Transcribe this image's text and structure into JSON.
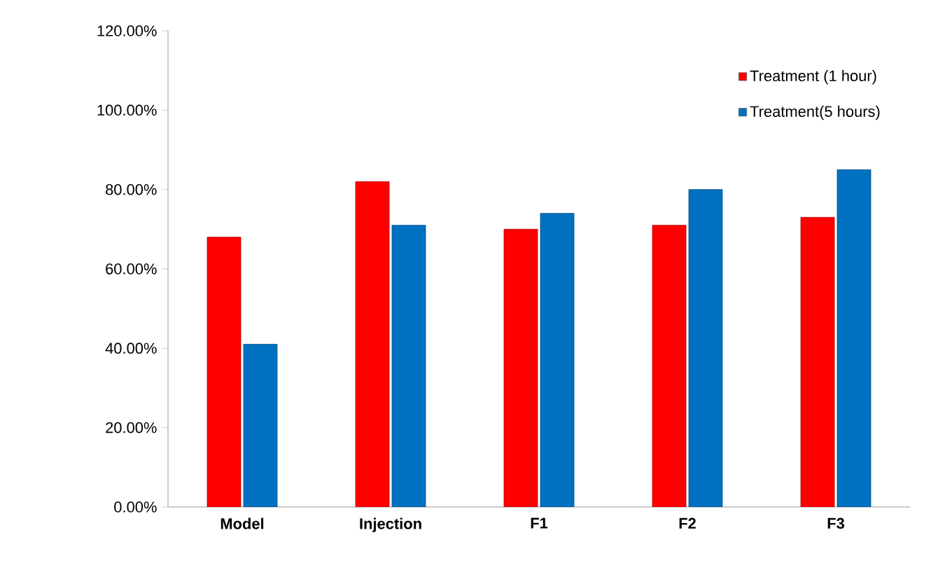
{
  "chart_data": {
    "type": "bar",
    "categories": [
      "Model",
      "Injection",
      "F1",
      "F2",
      "F3"
    ],
    "series": [
      {
        "name": "Treatment (1 hour)",
        "color": "#ff0000",
        "values": [
          68,
          82,
          70,
          71,
          73
        ]
      },
      {
        "name": "Treatment(5 hours)",
        "color": "#0070c0",
        "values": [
          41,
          71,
          74,
          80,
          85
        ]
      }
    ],
    "ylim": [
      0,
      120
    ],
    "yticks": [
      {
        "value": 0,
        "label": "0.00%"
      },
      {
        "value": 20,
        "label": "20.00%"
      },
      {
        "value": 40,
        "label": "40.00%"
      },
      {
        "value": 60,
        "label": "60.00%"
      },
      {
        "value": 80,
        "label": "80.00%"
      },
      {
        "value": 100,
        "label": "100.00%"
      },
      {
        "value": 120,
        "label": "120.00%"
      }
    ],
    "legend": "top right",
    "grid": false
  }
}
